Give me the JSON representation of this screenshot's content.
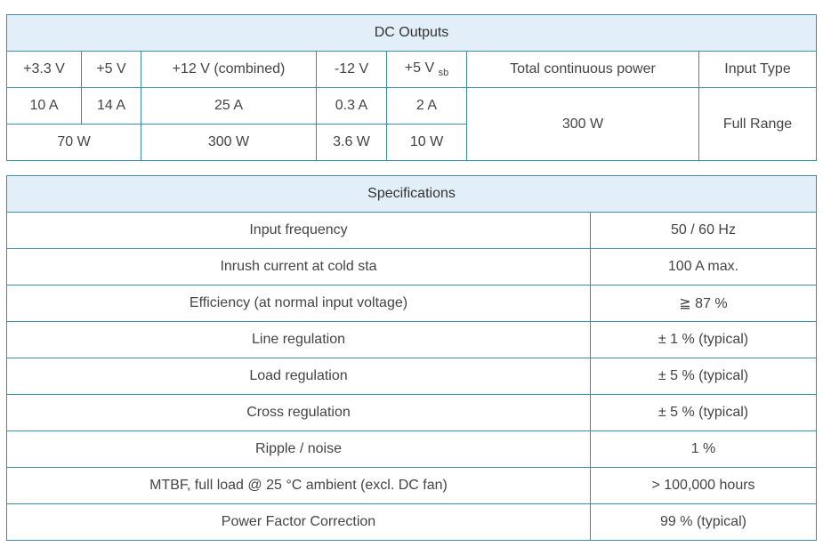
{
  "dc": {
    "title": "DC Outputs",
    "voltages": [
      "+3.3 V",
      "+5 V",
      "+12 V (combined)",
      "-12 V"
    ],
    "v5sb": "+5 V",
    "v5sb_sub": "sb",
    "total_header": "Total continuous power",
    "input_header": "Input Type",
    "currents": [
      "10 A",
      "14 A",
      "25 A",
      "0.3 A",
      "2 A"
    ],
    "total_value": "300 W",
    "input_value": "Full Range",
    "watts": [
      "70 W",
      "300 W",
      "3.6 W",
      "10 W"
    ]
  },
  "spec": {
    "title": "Specifications",
    "rows": [
      {
        "label": "Input frequency",
        "value": "50 / 60 Hz"
      },
      {
        "label": "Inrush current at cold sta",
        "value": "100 A max."
      },
      {
        "label": "Efficiency (at normal input voltage)",
        "value": "≧ 87 %"
      },
      {
        "label": "Line regulation",
        "value": "± 1 % (typical)"
      },
      {
        "label": "Load regulation",
        "value": "± 5 % (typical)"
      },
      {
        "label": "Cross regulation",
        "value": "± 5 % (typical)"
      },
      {
        "label": "Ripple / noise",
        "value": "1 %"
      },
      {
        "label": "MTBF, full load @ 25 °C ambient (excl. DC fan)",
        "value": "> 100,000 hours"
      },
      {
        "label": "Power Factor Correction",
        "value": "99 % (typical)"
      }
    ]
  }
}
